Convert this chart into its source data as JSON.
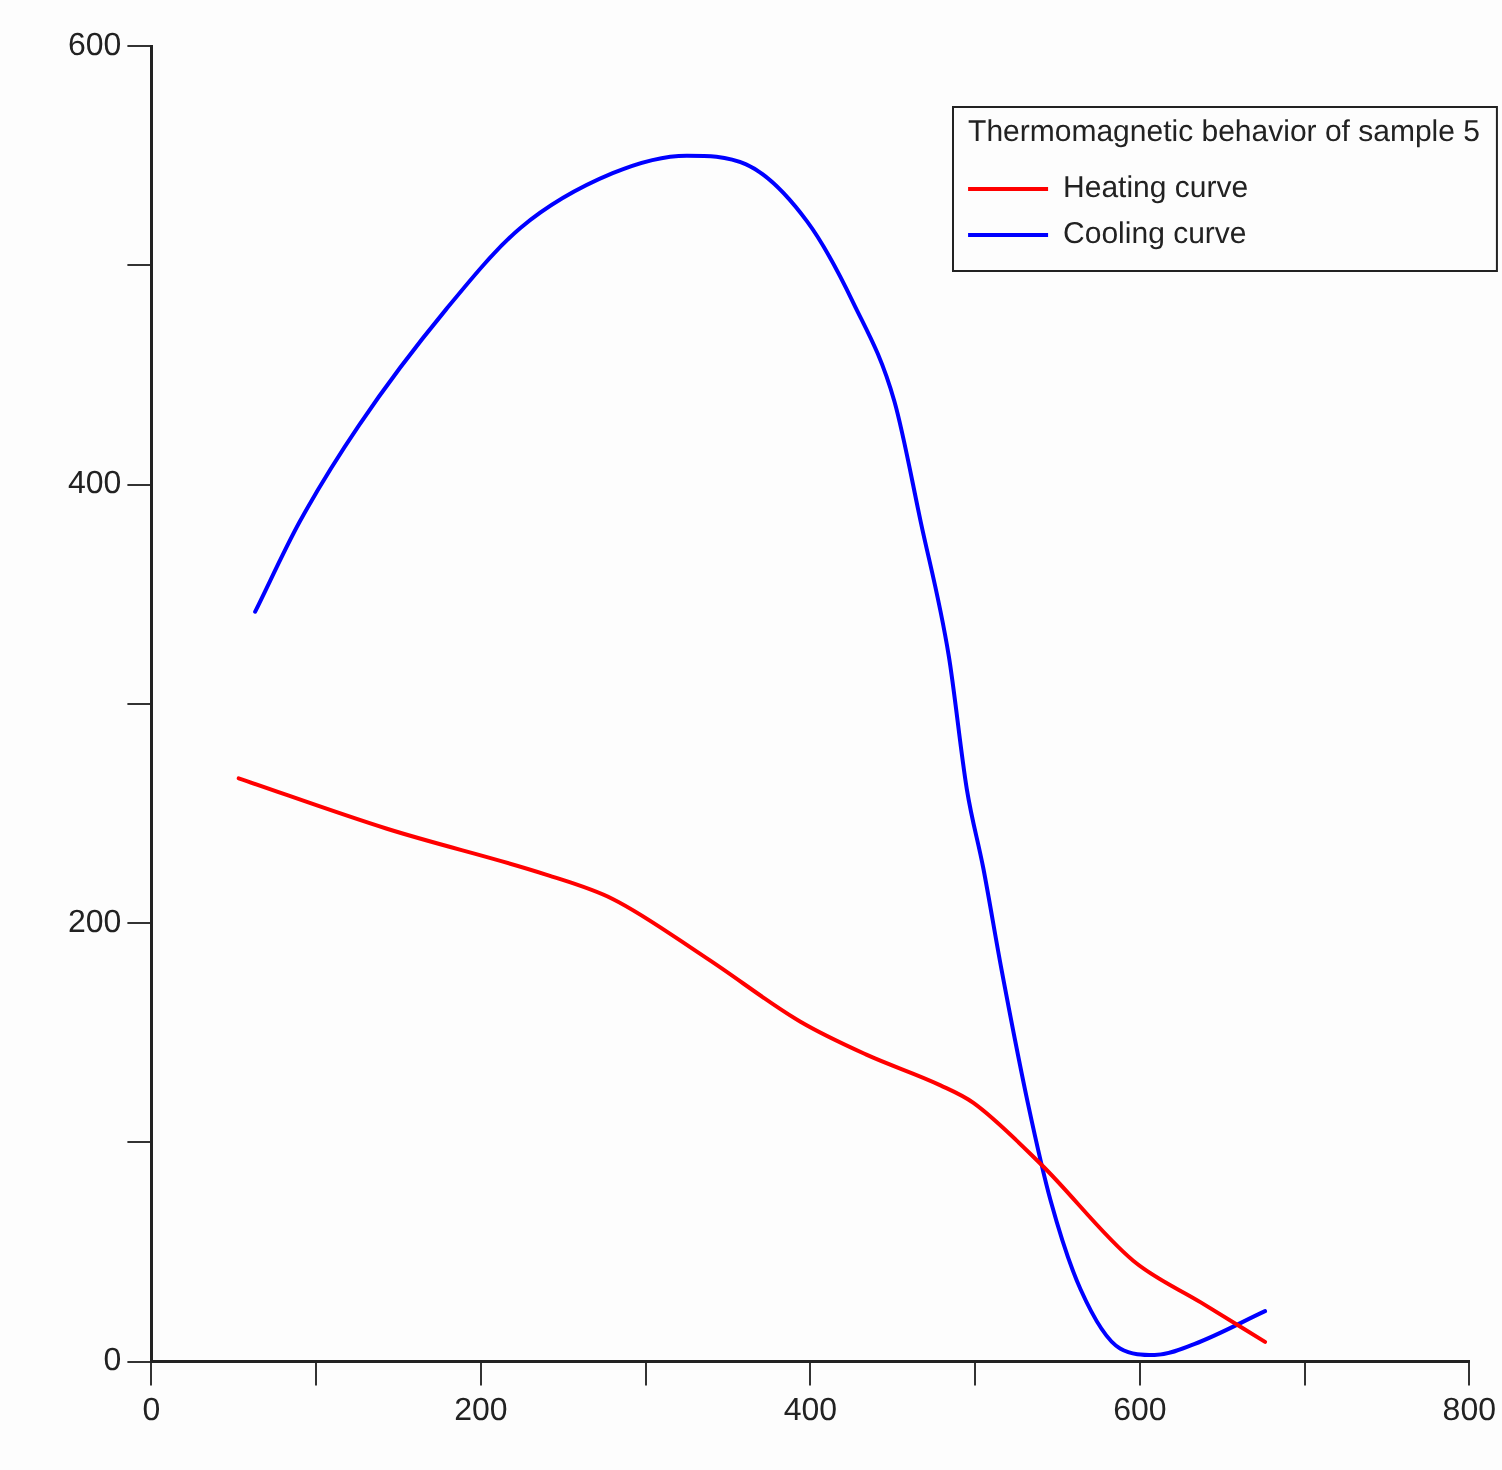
{
  "chart_data": {
    "type": "line",
    "legend_title": "Thermomagnetic behavior of sample 5",
    "legend": "top right",
    "grid": false,
    "marker": "none",
    "line_style": "solid",
    "xlim": [
      0,
      800
    ],
    "xticks": [
      0,
      {
        "value": 100,
        "label": null
      },
      200,
      {
        "value": 300,
        "label": null
      },
      400,
      {
        "value": 500,
        "label": null
      },
      600,
      {
        "value": 700,
        "label": null
      },
      800
    ],
    "ylim": [
      0,
      600
    ],
    "yticks": [
      0,
      {
        "value": 100,
        "label": null
      },
      200,
      {
        "value": 300,
        "label": null
      },
      400,
      {
        "value": 500,
        "label": null
      },
      600
    ],
    "series": [
      {
        "name": "Heating curve",
        "color": "#ff0000",
        "x": [
          53,
          143,
          240,
          280,
          337,
          394,
          434,
          479,
          499,
          540,
          596,
          637,
          676
        ],
        "values": [
          266,
          243,
          222,
          211,
          184,
          155,
          140,
          126,
          118,
          90,
          46,
          27,
          9
        ]
      },
      {
        "name": "Cooling curve",
        "color": "#0000ff",
        "x": [
          63,
          90,
          126,
          179,
          224,
          280,
          325,
          361,
          398,
          426,
          451,
          467,
          484,
          495,
          505,
          516,
          532,
          546,
          564,
          588,
          609,
          633,
          676
        ],
        "values": [
          342,
          383,
          427,
          480,
          517,
          542,
          550,
          546,
          520,
          483,
          438,
          383,
          322,
          261,
          225,
          179,
          118,
          73,
          33,
          6,
          3,
          8,
          23
        ]
      }
    ]
  }
}
